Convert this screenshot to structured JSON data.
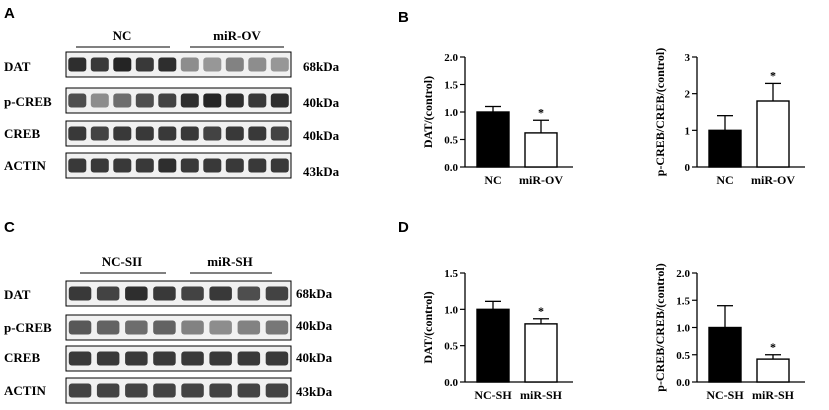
{
  "panels": {
    "A": "A",
    "B": "B",
    "C": "C",
    "D": "D"
  },
  "blots": [
    {
      "id": "A",
      "groups": [
        "NC",
        "miR-OV"
      ],
      "rows": [
        {
          "label": "DAT",
          "kda": "68kDa"
        },
        {
          "label": "p-CREB",
          "kda": "40kDa"
        },
        {
          "label": "CREB",
          "kda": "40kDa"
        },
        {
          "label": "ACTIN",
          "kda": "43kDa"
        }
      ]
    },
    {
      "id": "C",
      "groups": [
        "NC-SII",
        "miR-SH"
      ],
      "rows": [
        {
          "label": "DAT",
          "kda": "68kDa"
        },
        {
          "label": "p-CREB",
          "kda": "40kDa"
        },
        {
          "label": "CREB",
          "kda": "40kDa"
        },
        {
          "label": "ACTIN",
          "kda": "43kDa"
        }
      ]
    }
  ],
  "chart_data": [
    {
      "type": "bar",
      "panel": "B",
      "ylabel": "DAT/(control)",
      "categories": [
        "NC",
        "miR-OV"
      ],
      "values": [
        1.0,
        0.62
      ],
      "errors": [
        0.1,
        0.23
      ],
      "significance": [
        "",
        "*"
      ],
      "ylim": [
        0,
        2.0
      ],
      "yticks": [
        "0.0",
        "0.5",
        "1.0",
        "1.5",
        "2.0"
      ],
      "colors": [
        "#000000",
        "#ffffff"
      ]
    },
    {
      "type": "bar",
      "panel": "B",
      "ylabel": "p-CREB/CREB/(control)",
      "categories": [
        "NC",
        "miR-OV"
      ],
      "values": [
        1.0,
        1.8
      ],
      "errors": [
        0.4,
        0.48
      ],
      "significance": [
        "",
        "*"
      ],
      "ylim": [
        0,
        3
      ],
      "yticks": [
        "0",
        "1",
        "2",
        "3"
      ],
      "colors": [
        "#000000",
        "#ffffff"
      ]
    },
    {
      "type": "bar",
      "panel": "D",
      "ylabel": "DAT/(control)",
      "categories": [
        "NC-SH",
        "miR-SH"
      ],
      "values": [
        1.0,
        0.8
      ],
      "errors": [
        0.11,
        0.07
      ],
      "significance": [
        "",
        "*"
      ],
      "ylim": [
        0,
        1.5
      ],
      "yticks": [
        "0.0",
        "0.5",
        "1.0",
        "1.5"
      ],
      "colors": [
        "#000000",
        "#ffffff"
      ]
    },
    {
      "type": "bar",
      "panel": "D",
      "ylabel": "p-CREB/CREB/(control)",
      "categories": [
        "NC-SH",
        "miR-SH"
      ],
      "values": [
        1.0,
        0.42
      ],
      "errors": [
        0.4,
        0.08
      ],
      "significance": [
        "",
        "*"
      ],
      "ylim": [
        0,
        2.0
      ],
      "yticks": [
        "0.0",
        "0.5",
        "1.0",
        "1.5",
        "2.0"
      ],
      "colors": [
        "#000000",
        "#ffffff"
      ]
    }
  ]
}
